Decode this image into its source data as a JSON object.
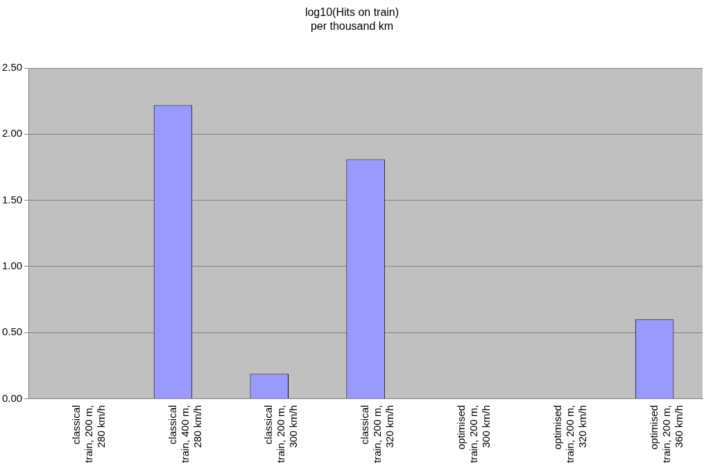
{
  "chart_data": {
    "type": "bar",
    "title": "log10(Hits on train)",
    "subtitle": "per thousand km",
    "categories": [
      "classical train, 200 m, 280 km/h",
      "classical train, 400 m, 280 km/h",
      "classical train, 200 m, 300 km/h",
      "classical train, 200 m, 320 km/h",
      "optimised train, 200 m, 300 km/h",
      "optimised train, 200 m, 320 km/h",
      "optimised train, 200 m, 360 km/h"
    ],
    "values": [
      0,
      2.22,
      0.19,
      1.81,
      0,
      0,
      0.6
    ],
    "color": "#9999ff",
    "ylim": [
      0,
      2.5
    ],
    "yticks": [
      {
        "value": 0,
        "label": "0.00"
      },
      {
        "value": 0.5,
        "label": "0.50"
      },
      {
        "value": 1,
        "label": "1.00"
      },
      {
        "value": 1.5,
        "label": "1.50"
      },
      {
        "value": 2,
        "label": "2.00"
      },
      {
        "value": 2.5,
        "label": "2.50"
      }
    ],
    "grid": "y",
    "legend": false
  }
}
